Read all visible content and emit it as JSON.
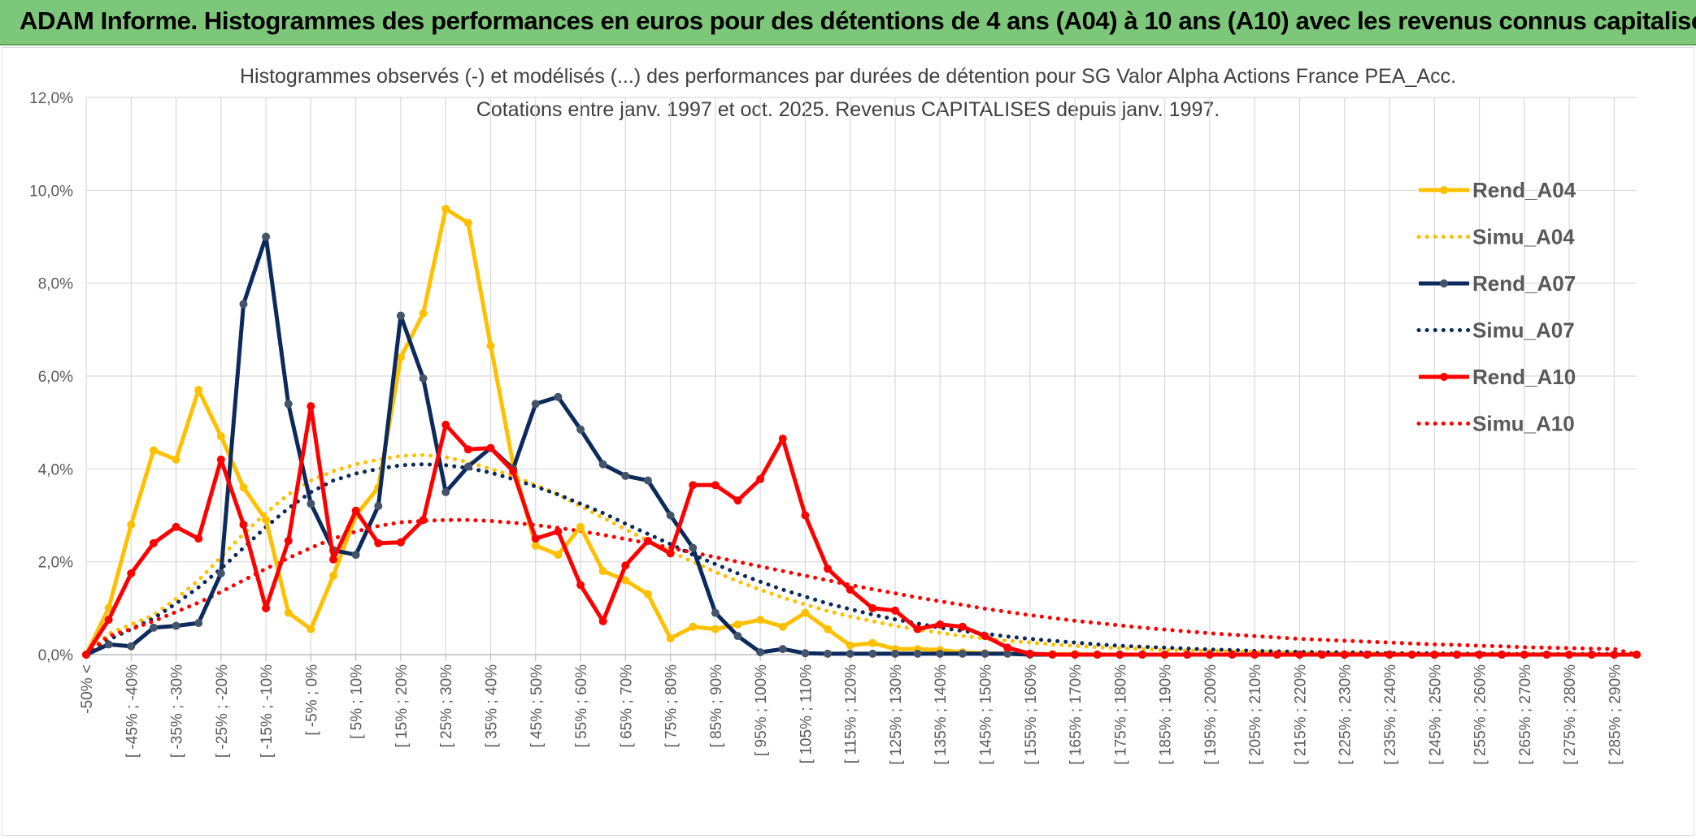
{
  "header": {
    "title": "ADAM Informe. Histogrammes des performances en euros pour des détentions de 4 ans (A04) à 10 ans (A10) avec les revenus connus capitalisés"
  },
  "chart_data": {
    "type": "line",
    "title_line1": "Histogrammes observés (-) et modélisés (...) des performances par durées de détention pour SG Valor Alpha Actions France PEA_Acc.",
    "title_line2": "Cotations entre janv. 1997 et oct. 2025. Revenus CAPITALISES depuis janv. 1997.",
    "ylim": [
      0,
      12
    ],
    "yticks": [
      "0,0%",
      "2,0%",
      "4,0%",
      "6,0%",
      "8,0%",
      "10,0%",
      "12,0%"
    ],
    "x_labels": [
      "-50% <",
      "[ -45% ; -40%",
      "[ -35% ; -30%",
      "[ -25% ; -20%",
      "[ -15% ; -10%",
      "[ -5% ; 0%",
      "[ 5% ; 10%",
      "[ 15% ; 20%",
      "[ 25% ; 30%",
      "[ 35% ; 40%",
      "[ 45% ; 50%",
      "[ 55% ; 60%",
      "[ 65% ; 70%",
      "[ 75% ; 80%",
      "[ 85% ; 90%",
      "[ 95% ; 100%",
      "[ 105% ; 110%",
      "[ 115% ; 120%",
      "[ 125% ; 130%",
      "[ 135% ; 140%",
      "[ 145% ; 150%",
      "[ 155% ; 160%",
      "[ 165% ; 170%",
      "[ 175% ; 180%",
      "[ 185% ; 190%",
      "[ 195% ; 200%",
      "[ 205% ; 210%",
      "[ 215% ; 220%",
      "[ 225% ; 230%",
      "[ 235% ; 240%",
      "[ 245% ; 250%",
      "[ 255% ; 260%",
      "[ 265% ; 270%",
      "[ 275% ; 280%",
      "[ 285% ; 290%"
    ],
    "num_points": 70,
    "series": [
      {
        "name": "Rend_A04",
        "style": "solid",
        "color": "#ffc000",
        "values": [
          0.0,
          1.0,
          2.8,
          4.4,
          4.2,
          5.7,
          4.7,
          3.6,
          2.9,
          0.9,
          0.55,
          1.7,
          3.0,
          3.6,
          6.4,
          7.35,
          9.6,
          9.3,
          6.65,
          4.1,
          2.35,
          2.15,
          2.75,
          1.8,
          1.6,
          1.3,
          0.35,
          0.6,
          0.55,
          0.65,
          0.75,
          0.6,
          0.9,
          0.55,
          0.2,
          0.25,
          0.12,
          0.12,
          0.1,
          0.05,
          0.03,
          0.02,
          0.01,
          0.01,
          0.01,
          0,
          0,
          0,
          0,
          0,
          0,
          0,
          0,
          0,
          0,
          0,
          0,
          0,
          0,
          0,
          0,
          0,
          0,
          0,
          0,
          0,
          0,
          0,
          0,
          0
        ]
      },
      {
        "name": "Simu_A04",
        "style": "dotted",
        "color": "#ffc000",
        "values": [
          0.0,
          0.45,
          0.65,
          0.85,
          1.2,
          1.6,
          2.1,
          2.6,
          3.05,
          3.45,
          3.75,
          3.95,
          4.1,
          4.2,
          4.28,
          4.3,
          4.25,
          4.15,
          4.0,
          3.85,
          3.65,
          3.45,
          3.2,
          2.95,
          2.7,
          2.45,
          2.22,
          2.0,
          1.78,
          1.58,
          1.4,
          1.23,
          1.08,
          0.94,
          0.82,
          0.72,
          0.62,
          0.54,
          0.47,
          0.4,
          0.35,
          0.3,
          0.26,
          0.22,
          0.19,
          0.16,
          0.14,
          0.12,
          0.1,
          0.09,
          0.08,
          0.07,
          0.06,
          0.05,
          0.04,
          0.04,
          0.03,
          0.03,
          0.02,
          0.02,
          0.02,
          0.01,
          0.01,
          0.01,
          0.01,
          0.01,
          0.01,
          0.0,
          0.0,
          0.0
        ]
      },
      {
        "name": "Rend_A07",
        "style": "solid",
        "color": "#0d2a5c",
        "values": [
          0.0,
          0.22,
          0.18,
          0.58,
          0.62,
          0.68,
          1.75,
          7.55,
          9.0,
          5.4,
          3.25,
          2.25,
          2.15,
          3.2,
          7.3,
          5.95,
          3.5,
          4.05,
          4.45,
          4.0,
          5.4,
          5.55,
          4.85,
          4.1,
          3.85,
          3.75,
          3.0,
          2.3,
          0.9,
          0.4,
          0.05,
          0.12,
          0.03,
          0.02,
          0.02,
          0.02,
          0.02,
          0.02,
          0.02,
          0.02,
          0.02,
          0.02,
          0,
          0,
          0,
          0,
          0,
          0,
          0,
          0,
          0,
          0,
          0,
          0,
          0,
          0,
          0,
          0,
          0,
          0,
          0,
          0,
          0,
          0,
          0,
          0,
          0,
          0,
          0,
          0
        ]
      },
      {
        "name": "Simu_A07",
        "style": "dotted",
        "color": "#0d2a5c",
        "values": [
          0.0,
          0.32,
          0.55,
          0.78,
          1.1,
          1.45,
          1.85,
          2.3,
          2.75,
          3.15,
          3.5,
          3.75,
          3.9,
          4.0,
          4.08,
          4.1,
          4.08,
          4.02,
          3.92,
          3.78,
          3.62,
          3.45,
          3.25,
          3.05,
          2.82,
          2.6,
          2.38,
          2.15,
          1.95,
          1.75,
          1.57,
          1.4,
          1.25,
          1.1,
          0.98,
          0.86,
          0.76,
          0.67,
          0.58,
          0.51,
          0.45,
          0.39,
          0.34,
          0.3,
          0.26,
          0.22,
          0.19,
          0.17,
          0.15,
          0.13,
          0.11,
          0.1,
          0.08,
          0.07,
          0.06,
          0.05,
          0.05,
          0.04,
          0.03,
          0.03,
          0.03,
          0.02,
          0.02,
          0.02,
          0.01,
          0.01,
          0.01,
          0.01,
          0.01,
          0.0
        ]
      },
      {
        "name": "Rend_A10",
        "style": "solid",
        "color": "#ff0000",
        "values": [
          0.0,
          0.75,
          1.75,
          2.4,
          2.75,
          2.5,
          4.2,
          2.8,
          1.0,
          2.45,
          5.35,
          2.05,
          3.1,
          2.4,
          2.42,
          2.9,
          4.95,
          4.42,
          4.45,
          3.95,
          2.5,
          2.65,
          1.5,
          0.72,
          1.92,
          2.45,
          2.18,
          3.65,
          3.65,
          3.32,
          3.78,
          4.65,
          3.0,
          1.85,
          1.4,
          1.0,
          0.95,
          0.55,
          0.65,
          0.6,
          0.4,
          0.15,
          0.02,
          0,
          0,
          0,
          0,
          0,
          0,
          0,
          0,
          0,
          0,
          0,
          0,
          0,
          0,
          0,
          0,
          0,
          0,
          0,
          0,
          0,
          0,
          0,
          0,
          0,
          0,
          0
        ]
      },
      {
        "name": "Simu_A10",
        "style": "dotted",
        "color": "#ff0000",
        "values": [
          0.0,
          0.4,
          0.55,
          0.72,
          0.92,
          1.12,
          1.35,
          1.6,
          1.85,
          2.08,
          2.3,
          2.5,
          2.65,
          2.77,
          2.85,
          2.88,
          2.9,
          2.9,
          2.88,
          2.84,
          2.79,
          2.73,
          2.66,
          2.58,
          2.49,
          2.4,
          2.3,
          2.2,
          2.1,
          2.0,
          1.9,
          1.8,
          1.7,
          1.6,
          1.5,
          1.41,
          1.32,
          1.23,
          1.15,
          1.07,
          0.99,
          0.92,
          0.85,
          0.79,
          0.73,
          0.68,
          0.63,
          0.58,
          0.54,
          0.5,
          0.46,
          0.43,
          0.4,
          0.37,
          0.34,
          0.32,
          0.3,
          0.28,
          0.26,
          0.24,
          0.22,
          0.21,
          0.19,
          0.18,
          0.16,
          0.15,
          0.14,
          0.13,
          0.12,
          0.0
        ]
      }
    ],
    "legend_position": "right"
  }
}
